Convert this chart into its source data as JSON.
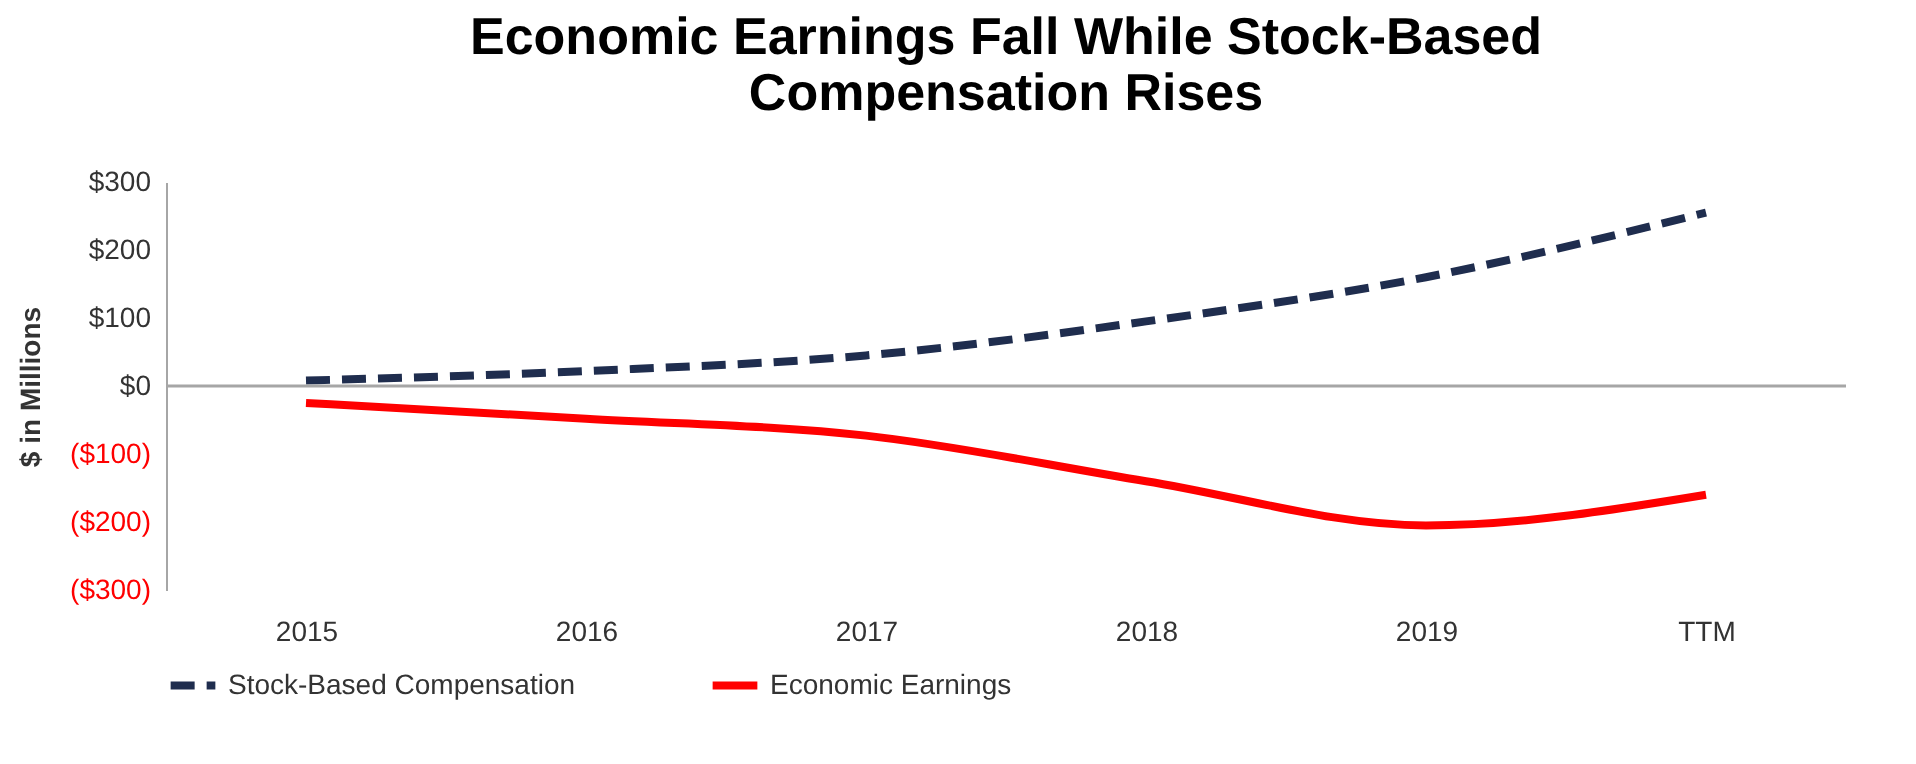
{
  "chart_data": {
    "type": "line",
    "title": [
      "Economic Earnings Fall While Stock-Based",
      "Compensation Rises"
    ],
    "ylabel": "$ in Millions",
    "categories": [
      "2015",
      "2016",
      "2017",
      "2018",
      "2019",
      "TTM"
    ],
    "series": [
      {
        "name": "Stock-Based Compensation",
        "color": "#1f2d4e",
        "line_style": "dashed",
        "values": [
          8,
          22,
          45,
          95,
          160,
          255
        ]
      },
      {
        "name": "Economic Earnings",
        "color": "#ff0000",
        "line_style": "solid",
        "values": [
          -25,
          -48,
          -73,
          -140,
          -205,
          -160
        ]
      }
    ],
    "ylim": [
      -300,
      300
    ],
    "yticks": [
      {
        "value": -300,
        "label": "($300)"
      },
      {
        "value": -200,
        "label": "($200)"
      },
      {
        "value": -100,
        "label": "($100)"
      },
      {
        "value": 0,
        "label": "$0"
      },
      {
        "value": 100,
        "label": "$100"
      },
      {
        "value": 200,
        "label": "$200"
      },
      {
        "value": 300,
        "label": "$300"
      }
    ],
    "ref_lines": [
      {
        "axis": "y",
        "value": 0,
        "color": "#a6a6a6"
      }
    ],
    "grid": false,
    "legend": "bottom",
    "marker": "none"
  }
}
